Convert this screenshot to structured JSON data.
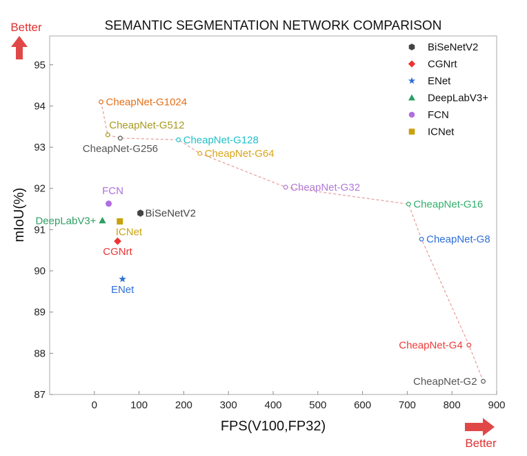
{
  "chart_data": {
    "type": "scatter",
    "title": "SEMANTIC SEGMENTATION NETWORK COMPARISON",
    "xlabel": "FPS(V100,FP32)",
    "ylabel": "mIoU(%)",
    "xlim": [
      -100,
      900
    ],
    "ylim": [
      87,
      95.7
    ],
    "xticks": [
      0,
      100,
      200,
      300,
      400,
      500,
      600,
      700,
      800,
      900
    ],
    "yticks": [
      87,
      88,
      89,
      90,
      91,
      92,
      93,
      94,
      95
    ],
    "grid": false,
    "legend_position": "top-right",
    "better_indicators": {
      "y": "Better",
      "x": "Better",
      "color": "#e04040"
    },
    "legend": [
      {
        "name": "BiSeNetV2",
        "marker": "hexagon",
        "color": "#444444"
      },
      {
        "name": "CGNrt",
        "marker": "diamond",
        "color": "#ee3333"
      },
      {
        "name": "ENet",
        "marker": "star",
        "color": "#2e6fd8"
      },
      {
        "name": "DeepLabV3+",
        "marker": "triangle",
        "color": "#2e9e62"
      },
      {
        "name": "FCN",
        "marker": "circle",
        "color": "#b06ee0"
      },
      {
        "name": "ICNet",
        "marker": "square",
        "color": "#c9a10e"
      }
    ],
    "baselines": [
      {
        "name": "BiSeNetV2",
        "x": 103,
        "y": 91.4,
        "label_pos": "right",
        "marker": "hexagon",
        "color": "#444444"
      },
      {
        "name": "CGNrt",
        "x": 52,
        "y": 90.72,
        "label_pos": "below",
        "marker": "diamond",
        "color": "#ee3333"
      },
      {
        "name": "ENet",
        "x": 63,
        "y": 89.8,
        "label_pos": "below",
        "marker": "star",
        "color": "#2e6fd8"
      },
      {
        "name": "DeepLabV3+",
        "x": 18,
        "y": 91.22,
        "label_pos": "left",
        "marker": "triangle",
        "color": "#2e9e62"
      },
      {
        "name": "FCN",
        "x": 32,
        "y": 91.63,
        "label_pos": "above",
        "marker": "circle",
        "color": "#b06ee0"
      },
      {
        "name": "ICNet",
        "x": 57,
        "y": 91.2,
        "label_pos": "below-right",
        "marker": "square",
        "color": "#c9a10e"
      }
    ],
    "cheapnet_series": {
      "line_color": "#e89a9a",
      "points": [
        {
          "name": "CheapNet-G1024",
          "x": 15,
          "y": 94.1,
          "label_pos": "right",
          "color": "#e46f1a"
        },
        {
          "name": "CheapNet-G512",
          "x": 30,
          "y": 93.3,
          "label_pos": "above-right",
          "color": "#a89a20"
        },
        {
          "name": "CheapNet-G256",
          "x": 58,
          "y": 93.22,
          "label_pos": "below",
          "color": "#555555"
        },
        {
          "name": "CheapNet-G128",
          "x": 188,
          "y": 93.18,
          "label_pos": "right",
          "color": "#20c0c8"
        },
        {
          "name": "CheapNet-G64",
          "x": 236,
          "y": 92.85,
          "label_pos": "right",
          "color": "#d9a418"
        },
        {
          "name": "CheapNet-G32",
          "x": 428,
          "y": 92.03,
          "label_pos": "right",
          "color": "#b07ad8"
        },
        {
          "name": "CheapNet-G16",
          "x": 703,
          "y": 91.62,
          "label_pos": "right",
          "color": "#2fae6a"
        },
        {
          "name": "CheapNet-G8",
          "x": 732,
          "y": 90.77,
          "label_pos": "right",
          "color": "#2e6fd8"
        },
        {
          "name": "CheapNet-G4",
          "x": 838,
          "y": 88.2,
          "label_pos": "left",
          "color": "#ee3a3a"
        },
        {
          "name": "CheapNet-G2",
          "x": 870,
          "y": 87.32,
          "label_pos": "left",
          "color": "#555555"
        }
      ]
    }
  }
}
